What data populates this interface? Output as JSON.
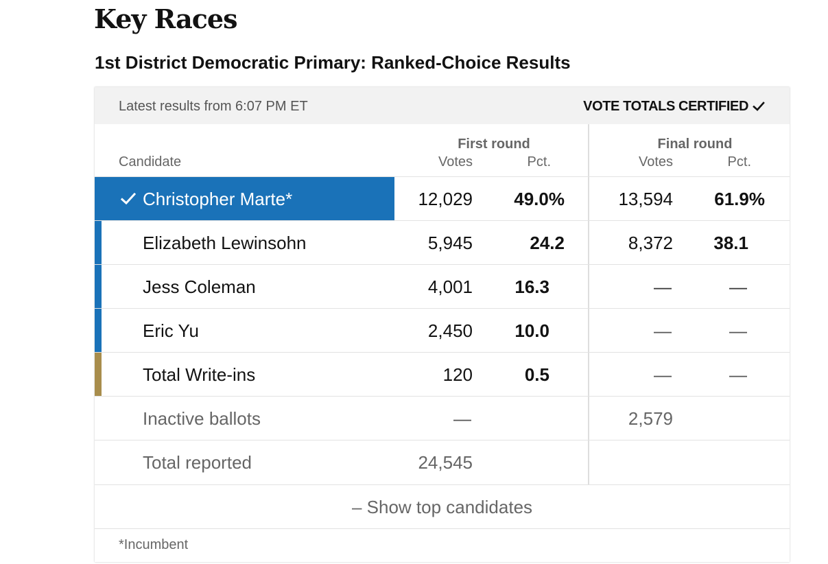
{
  "page": {
    "title": "Key Races",
    "race_title": "1st District Democratic Primary: Ranked-Choice Results"
  },
  "meta": {
    "updated": "Latest results from 6:07 PM ET",
    "certified": "VOTE TOTALS CERTIFIED"
  },
  "headers": {
    "candidate": "Candidate",
    "first_round": "First round",
    "final_round": "Final round",
    "votes": "Votes",
    "pct": "Pct."
  },
  "rows": [
    {
      "name": "Christopher Marte*",
      "winner": true,
      "first_votes": "12,029",
      "first_pct": "49.0%",
      "final_votes": "13,594",
      "final_pct": "61.9%",
      "party_color": "#1a72b8"
    },
    {
      "name": "Elizabeth Lewinsohn",
      "winner": false,
      "first_votes": "5,945",
      "first_pct": "24.2",
      "final_votes": "8,372",
      "final_pct": "38.1",
      "party_color": "#1a72b8"
    },
    {
      "name": "Jess Coleman",
      "winner": false,
      "first_votes": "4,001",
      "first_pct": "16.3",
      "final_votes": "—",
      "final_pct": "—",
      "party_color": "#1a72b8"
    },
    {
      "name": "Eric Yu",
      "winner": false,
      "first_votes": "2,450",
      "first_pct": "10.0",
      "final_votes": "—",
      "final_pct": "—",
      "party_color": "#1a72b8"
    },
    {
      "name": "Total Write-ins",
      "winner": false,
      "first_votes": "120",
      "first_pct": "0.5",
      "final_votes": "—",
      "final_pct": "—",
      "party_color": "#a88d4c"
    }
  ],
  "inactive": {
    "label": "Inactive ballots",
    "first_votes": "—",
    "final_votes": "2,579"
  },
  "total": {
    "label": "Total reported",
    "first_votes": "24,545"
  },
  "show_top_label": "– Show top candidates",
  "footnote": "*Incumbent",
  "colors": {
    "democrat_blue": "#1a72b8",
    "write_in_gold": "#a88d4c",
    "meta_bar_bg": "#f2f2f2"
  },
  "icons": {
    "certified": "check-icon",
    "winner": "check-icon"
  }
}
